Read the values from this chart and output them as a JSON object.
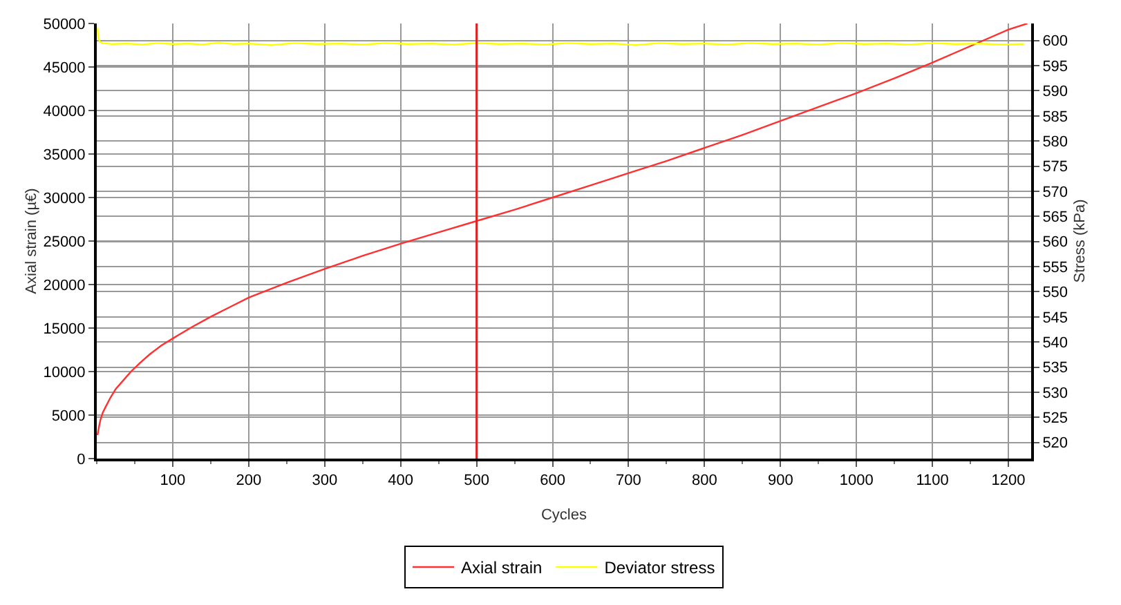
{
  "chart_data": {
    "type": "line",
    "xlabel": "Cycles",
    "ylabel": "Axial strain (µ€)",
    "y2label": "Stress (kPa)",
    "xlim": [
      0,
      1230
    ],
    "xticks": [
      100,
      200,
      300,
      400,
      500,
      600,
      700,
      800,
      900,
      1000,
      1100,
      1200
    ],
    "ylim": [
      0,
      50000
    ],
    "yticks": [
      0,
      5000,
      10000,
      15000,
      20000,
      25000,
      30000,
      35000,
      40000,
      45000,
      50000
    ],
    "y2lim": [
      516.8,
      603.4
    ],
    "y2ticks": [
      520,
      525,
      530,
      535,
      540,
      545,
      550,
      555,
      560,
      565,
      570,
      575,
      580,
      585,
      590,
      595,
      600
    ],
    "grid": true,
    "legend": "bottom",
    "marker": "none",
    "line_style": "solid",
    "ref_lines": [
      {
        "axis": "x",
        "value": 500,
        "color": "#e02020"
      }
    ],
    "series": [
      {
        "name": "Axial strain",
        "color": "#ff3030",
        "x": [
          1,
          3,
          5,
          8,
          12,
          18,
          25,
          35,
          45,
          57,
          70,
          85,
          100,
          125,
          150,
          175,
          200,
          250,
          300,
          350,
          400,
          450,
          500,
          550,
          600,
          650,
          700,
          750,
          800,
          850,
          900,
          950,
          1000,
          1050,
          1100,
          1150,
          1200,
          1225
        ],
        "values": [
          2700,
          3700,
          4500,
          5300,
          6000,
          7000,
          8000,
          9000,
          10000,
          11000,
          12000,
          13000,
          13800,
          15100,
          16300,
          17400,
          18500,
          20200,
          21800,
          23300,
          24700,
          26000,
          27300,
          28600,
          30000,
          31400,
          32800,
          34200,
          35700,
          37200,
          38800,
          40400,
          42000,
          43700,
          45500,
          47400,
          49300,
          50000
        ]
      },
      {
        "name": "Deviator stress",
        "color": "#ffff00",
        "axis": "y2",
        "x": [
          1,
          2,
          4,
          6,
          8,
          20,
          40,
          60,
          80,
          100,
          120,
          140,
          160,
          180,
          200,
          230,
          260,
          290,
          320,
          350,
          380,
          410,
          440,
          470,
          500,
          530,
          560,
          590,
          620,
          650,
          680,
          710,
          740,
          770,
          800,
          830,
          860,
          890,
          920,
          950,
          980,
          1010,
          1040,
          1070,
          1100,
          1130,
          1160,
          1190,
          1220
        ],
        "values": [
          602.5,
          600.5,
          599.8,
          599.6,
          599.5,
          599.3,
          599.4,
          599.2,
          599.5,
          599.3,
          599.4,
          599.2,
          599.6,
          599.3,
          599.4,
          599.1,
          599.5,
          599.3,
          599.4,
          599.2,
          599.5,
          599.3,
          599.4,
          599.2,
          599.5,
          599.3,
          599.4,
          599.2,
          599.5,
          599.3,
          599.4,
          599.1,
          599.5,
          599.3,
          599.4,
          599.2,
          599.5,
          599.3,
          599.4,
          599.2,
          599.5,
          599.3,
          599.4,
          599.2,
          599.5,
          599.3,
          599.4,
          599.2,
          599.3
        ]
      }
    ]
  }
}
